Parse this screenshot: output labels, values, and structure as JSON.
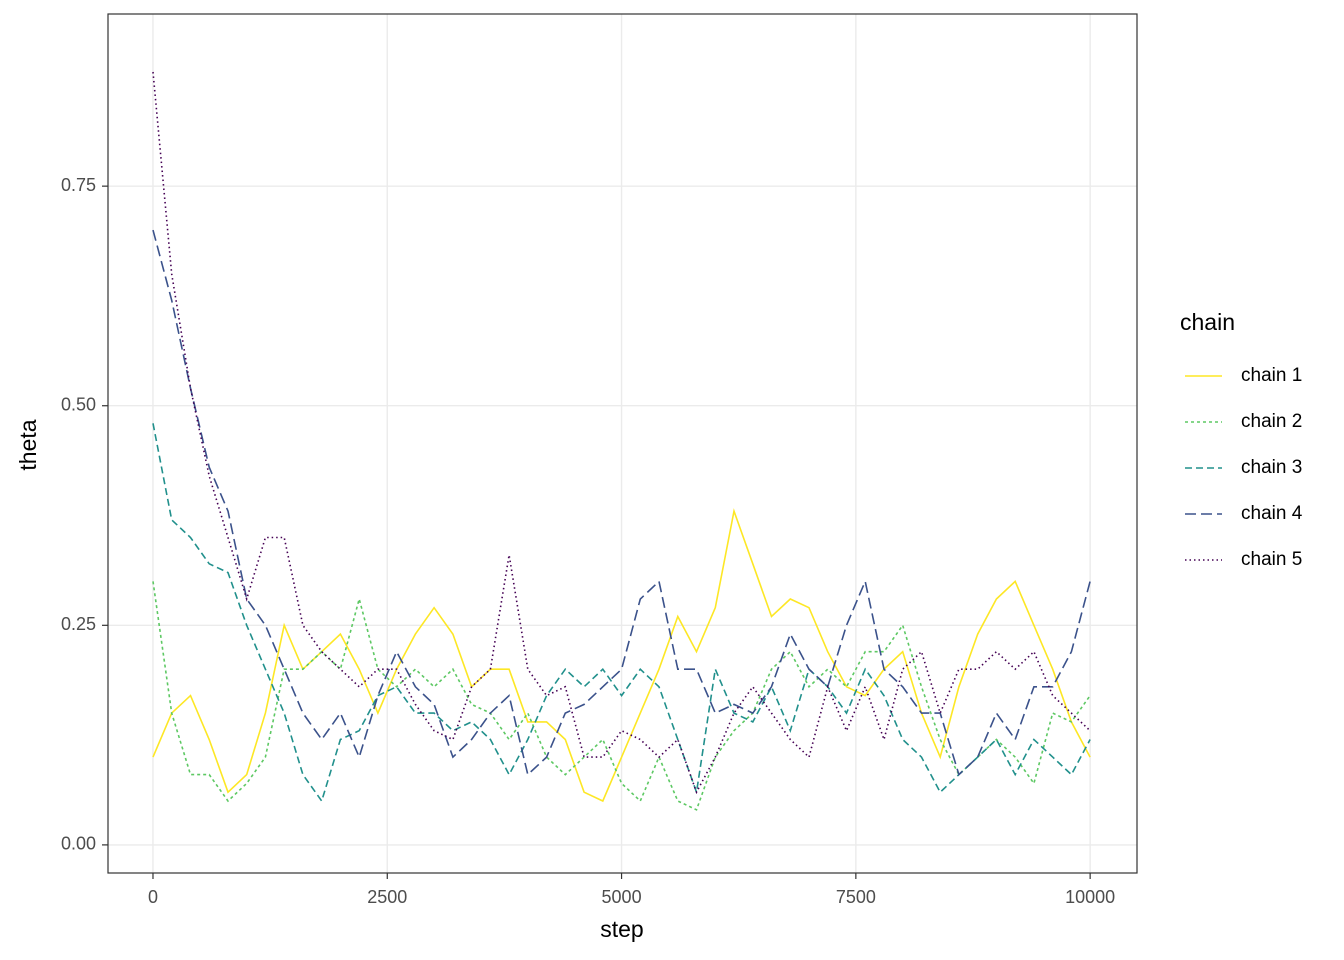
{
  "chart_data": {
    "type": "line",
    "x_label": "step",
    "y_label": "theta",
    "legend_title": "chain",
    "legend_position": "right",
    "grid": true,
    "xlim": [
      -480,
      10500
    ],
    "ylim": [
      -0.032,
      0.946
    ],
    "xticks": [
      0,
      2500,
      5000,
      7500,
      10000
    ],
    "yticks": [
      {
        "value": 0,
        "label": "0.00"
      },
      {
        "value": 0.25,
        "label": "0.25"
      },
      {
        "value": 0.5,
        "label": "0.50"
      },
      {
        "value": 0.75,
        "label": "0.75"
      }
    ],
    "x": [
      0,
      200,
      400,
      600,
      800,
      1000,
      1200,
      1400,
      1600,
      1800,
      2000,
      2200,
      2400,
      2600,
      2800,
      3000,
      3200,
      3400,
      3600,
      3800,
      4000,
      4200,
      4400,
      4600,
      4800,
      5000,
      5200,
      5400,
      5600,
      5800,
      6000,
      6200,
      6400,
      6600,
      6800,
      7000,
      7200,
      7400,
      7600,
      7800,
      8000,
      8200,
      8400,
      8600,
      8800,
      9000,
      9200,
      9400,
      9600,
      9800,
      10000
    ],
    "series": [
      {
        "name": "chain 1",
        "color": "#FDE725",
        "linetype": "solid",
        "values": [
          0.1,
          0.15,
          0.17,
          0.12,
          0.06,
          0.08,
          0.15,
          0.25,
          0.2,
          0.22,
          0.24,
          0.2,
          0.15,
          0.2,
          0.24,
          0.27,
          0.24,
          0.18,
          0.2,
          0.2,
          0.14,
          0.14,
          0.12,
          0.06,
          0.05,
          0.1,
          0.15,
          0.2,
          0.26,
          0.22,
          0.27,
          0.38,
          0.32,
          0.26,
          0.28,
          0.27,
          0.22,
          0.18,
          0.17,
          0.2,
          0.22,
          0.15,
          0.1,
          0.18,
          0.24,
          0.28,
          0.3,
          0.25,
          0.2,
          0.14,
          0.1
        ]
      },
      {
        "name": "chain 2",
        "color": "#5DC863",
        "linetype": "short-dash",
        "values": [
          0.3,
          0.15,
          0.08,
          0.08,
          0.05,
          0.07,
          0.1,
          0.2,
          0.2,
          0.22,
          0.2,
          0.28,
          0.2,
          0.18,
          0.2,
          0.18,
          0.2,
          0.16,
          0.15,
          0.12,
          0.15,
          0.1,
          0.08,
          0.1,
          0.12,
          0.07,
          0.05,
          0.1,
          0.05,
          0.04,
          0.1,
          0.13,
          0.15,
          0.2,
          0.22,
          0.18,
          0.2,
          0.18,
          0.22,
          0.22,
          0.25,
          0.18,
          0.12,
          0.08,
          0.1,
          0.12,
          0.1,
          0.07,
          0.15,
          0.14,
          0.17
        ]
      },
      {
        "name": "chain 3",
        "color": "#21908C",
        "linetype": "dash",
        "values": [
          0.48,
          0.37,
          0.35,
          0.32,
          0.31,
          0.25,
          0.2,
          0.15,
          0.08,
          0.05,
          0.12,
          0.13,
          0.17,
          0.18,
          0.15,
          0.15,
          0.13,
          0.14,
          0.12,
          0.08,
          0.12,
          0.17,
          0.2,
          0.18,
          0.2,
          0.17,
          0.2,
          0.18,
          0.12,
          0.06,
          0.2,
          0.15,
          0.14,
          0.18,
          0.13,
          0.2,
          0.18,
          0.15,
          0.2,
          0.17,
          0.12,
          0.1,
          0.06,
          0.08,
          0.1,
          0.12,
          0.08,
          0.12,
          0.1,
          0.08,
          0.12
        ]
      },
      {
        "name": "chain 4",
        "color": "#3B528B",
        "linetype": "long-dash",
        "values": [
          0.7,
          0.62,
          0.52,
          0.43,
          0.38,
          0.28,
          0.25,
          0.2,
          0.15,
          0.12,
          0.15,
          0.1,
          0.17,
          0.22,
          0.18,
          0.16,
          0.1,
          0.12,
          0.15,
          0.17,
          0.08,
          0.1,
          0.15,
          0.16,
          0.18,
          0.2,
          0.28,
          0.3,
          0.2,
          0.2,
          0.15,
          0.16,
          0.15,
          0.18,
          0.24,
          0.2,
          0.18,
          0.25,
          0.3,
          0.2,
          0.18,
          0.15,
          0.15,
          0.08,
          0.1,
          0.15,
          0.12,
          0.18,
          0.18,
          0.22,
          0.3
        ]
      },
      {
        "name": "chain 5",
        "color": "#440154",
        "linetype": "dot",
        "values": [
          0.88,
          0.65,
          0.52,
          0.42,
          0.35,
          0.28,
          0.35,
          0.35,
          0.25,
          0.22,
          0.2,
          0.18,
          0.2,
          0.2,
          0.16,
          0.13,
          0.12,
          0.18,
          0.2,
          0.33,
          0.2,
          0.17,
          0.18,
          0.1,
          0.1,
          0.13,
          0.12,
          0.1,
          0.12,
          0.06,
          0.1,
          0.15,
          0.18,
          0.15,
          0.12,
          0.1,
          0.18,
          0.13,
          0.18,
          0.12,
          0.2,
          0.22,
          0.15,
          0.2,
          0.2,
          0.22,
          0.2,
          0.22,
          0.17,
          0.15,
          0.13
        ]
      }
    ]
  }
}
